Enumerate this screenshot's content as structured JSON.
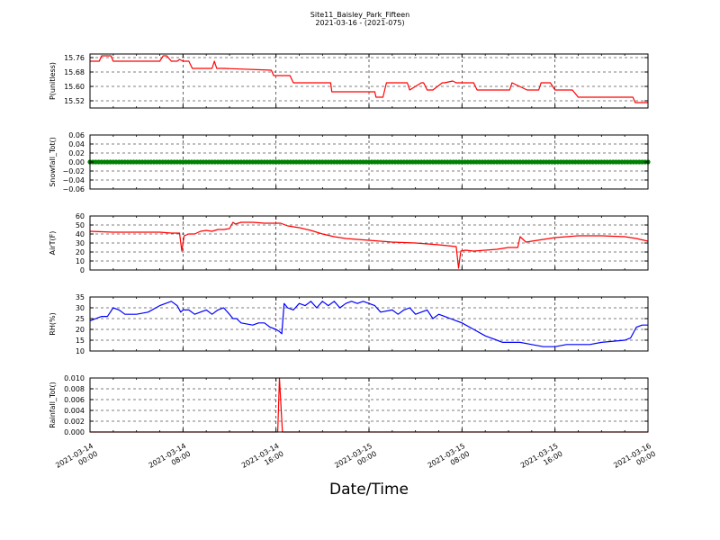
{
  "title": "Site11_Baisley_Park_Fifteen",
  "subtitle": "2021-03-16 - (2021-075)",
  "xlabel": "Date/Time",
  "chart_data": [
    {
      "type": "line",
      "ylabel": "P(unitless)",
      "color": "#ff0000",
      "ylim": [
        15.48,
        15.78
      ],
      "yticks": [
        "15.52",
        "15.60",
        "15.68",
        "15.76"
      ],
      "grid": true,
      "x_date_ticks": [
        "2021-03-14 00:00",
        "2021-03-14 08:00",
        "2021-03-14 16:00",
        "2021-03-15 00:00",
        "2021-03-15 08:00",
        "2021-03-15 16:00",
        "2021-03-16 00:00"
      ],
      "series": [
        {
          "x": [
            0,
            0.8,
            1.0,
            1.8,
            2.0,
            6.0,
            6.3,
            6.6,
            7.0,
            7.5,
            7.7,
            8.0,
            8.5,
            8.8,
            10.5,
            10.7,
            10.9,
            11.5,
            15.6,
            15.8,
            17.2,
            17.5,
            20.7,
            20.8,
            22.7,
            23.5,
            24.5,
            24.6,
            25.2,
            25.5,
            27.3,
            27.5,
            28.5,
            28.7,
            29.0,
            29.5,
            30.3,
            30.5,
            31.2,
            31.5,
            33.0,
            33.3,
            34.0,
            34.3,
            35.0,
            36.1,
            36.3,
            37.6,
            37.8,
            38.6,
            38.8,
            39.6,
            40.0,
            41.2,
            41.5,
            42.0,
            42.2,
            46.7,
            46.9,
            48.0
          ],
          "y": [
            15.74,
            15.74,
            15.77,
            15.77,
            15.74,
            15.74,
            15.77,
            15.77,
            15.74,
            15.74,
            15.75,
            15.74,
            15.74,
            15.7,
            15.7,
            15.74,
            15.7,
            15.7,
            15.69,
            15.66,
            15.66,
            15.62,
            15.62,
            15.57,
            15.57,
            15.57,
            15.57,
            15.54,
            15.54,
            15.62,
            15.62,
            15.58,
            15.62,
            15.62,
            15.58,
            15.58,
            15.62,
            15.62,
            15.63,
            15.62,
            15.62,
            15.58,
            15.58,
            15.58,
            15.58,
            15.58,
            15.62,
            15.58,
            15.58,
            15.58,
            15.62,
            15.62,
            15.58,
            15.58,
            15.58,
            15.54,
            15.54,
            15.54,
            15.51,
            15.51
          ]
        }
      ]
    },
    {
      "type": "scatter",
      "ylabel": "Snowfall_Tot()",
      "color": "#008000",
      "ylim": [
        -0.06,
        0.06
      ],
      "yticks": [
        "0.06",
        "0.04",
        "0.02",
        "0.00",
        "−0.02",
        "−0.04",
        "−0.06"
      ],
      "grid": true,
      "series": [
        {
          "x_range": [
            0,
            48
          ],
          "interval_hours": 0.25,
          "value": 0.0
        }
      ]
    },
    {
      "type": "line",
      "ylabel": "AirT(F)",
      "color": "#ff0000",
      "ylim": [
        0,
        60
      ],
      "yticks": [
        "0",
        "10",
        "20",
        "30",
        "40",
        "50",
        "60"
      ],
      "grid": true,
      "series": [
        {
          "x": [
            0,
            2,
            4,
            6,
            7,
            7.7,
            7.9,
            8.1,
            8.5,
            9.0,
            9.5,
            10.0,
            10.5,
            11.0,
            11.5,
            12.0,
            12.3,
            12.5,
            13.0,
            14.0,
            15.0,
            16.0,
            16.4,
            17.0,
            18.0,
            19.0,
            20.0,
            21.0,
            22.0,
            24.0,
            26.0,
            28.0,
            30.0,
            31.5,
            31.7,
            31.9,
            32.3,
            33.0,
            34.0,
            35.0,
            35.5,
            36.0,
            36.8,
            37.0,
            37.5,
            38.0,
            39.0,
            40.0,
            41.0,
            42.0,
            44.0,
            46.0,
            47.0,
            48.0
          ],
          "y": [
            43,
            42,
            42,
            42,
            41,
            41,
            21,
            38,
            40,
            40,
            43,
            44,
            43,
            45,
            45,
            46,
            53,
            51,
            53,
            53,
            52,
            52,
            52,
            49,
            47,
            44,
            40,
            37,
            35,
            33,
            31,
            30,
            28,
            26,
            2,
            21,
            22,
            21,
            22,
            23,
            24,
            25,
            25,
            37,
            31,
            32,
            34,
            36,
            37,
            38,
            38,
            37,
            35,
            32
          ]
        }
      ]
    },
    {
      "type": "line",
      "ylabel": "RH(%)",
      "color": "#0000ff",
      "ylim": [
        10,
        35
      ],
      "yticks": [
        "10",
        "15",
        "20",
        "25",
        "30",
        "35"
      ],
      "grid": true,
      "series": [
        {
          "x": [
            0,
            1,
            1.5,
            2,
            2.5,
            3,
            3.5,
            4,
            5,
            6,
            7,
            7.5,
            7.8,
            8.0,
            8.5,
            9.0,
            9.5,
            10.0,
            10.5,
            11.0,
            11.5,
            12.0,
            12.3,
            12.6,
            13.0,
            14.0,
            14.5,
            15.0,
            15.5,
            16.0,
            16.3,
            16.5,
            16.7,
            17.0,
            17.5,
            18.0,
            18.5,
            19.0,
            19.5,
            20.0,
            20.5,
            21.0,
            21.5,
            22.0,
            22.5,
            23.0,
            23.5,
            24.0,
            24.5,
            25.0,
            26.0,
            26.5,
            27.0,
            27.5,
            28.0,
            29.0,
            29.5,
            30.0,
            30.5,
            31.0,
            31.5,
            32.0,
            33.0,
            34.0,
            34.5,
            35.0,
            35.5,
            36.0,
            37.0,
            38.0,
            39.0,
            40.0,
            41.0,
            42.0,
            43.0,
            44.0,
            46.0,
            46.5,
            47.0,
            47.5,
            48.0
          ],
          "y": [
            24,
            26,
            26,
            30,
            29,
            27,
            27,
            27,
            28,
            31,
            33,
            31,
            28,
            29,
            29,
            27,
            28,
            29,
            27,
            29,
            30,
            27,
            25,
            25,
            23,
            22,
            23,
            23,
            21,
            20,
            19,
            18,
            32,
            30,
            29,
            32,
            31,
            33,
            30,
            33,
            31,
            33,
            30,
            32,
            33,
            32,
            33,
            32,
            31,
            28,
            29,
            27,
            29,
            30,
            27,
            29,
            25,
            27,
            26,
            25,
            24,
            23,
            20,
            17,
            16,
            15,
            14,
            14,
            14,
            13,
            12,
            12,
            13,
            13,
            13,
            14,
            15,
            16,
            21,
            22,
            22
          ]
        }
      ]
    },
    {
      "type": "line",
      "ylabel": "Rainfall_Tot()",
      "color": "#ff0000",
      "ylim": [
        0,
        0.01
      ],
      "yticks": [
        "0.000",
        "0.002",
        "0.004",
        "0.006",
        "0.008",
        "0.010"
      ],
      "grid": true,
      "series": [
        {
          "x": [
            0,
            16.15,
            16.3,
            16.55,
            48
          ],
          "y": [
            0,
            0,
            0.01,
            0,
            0
          ]
        }
      ]
    }
  ]
}
